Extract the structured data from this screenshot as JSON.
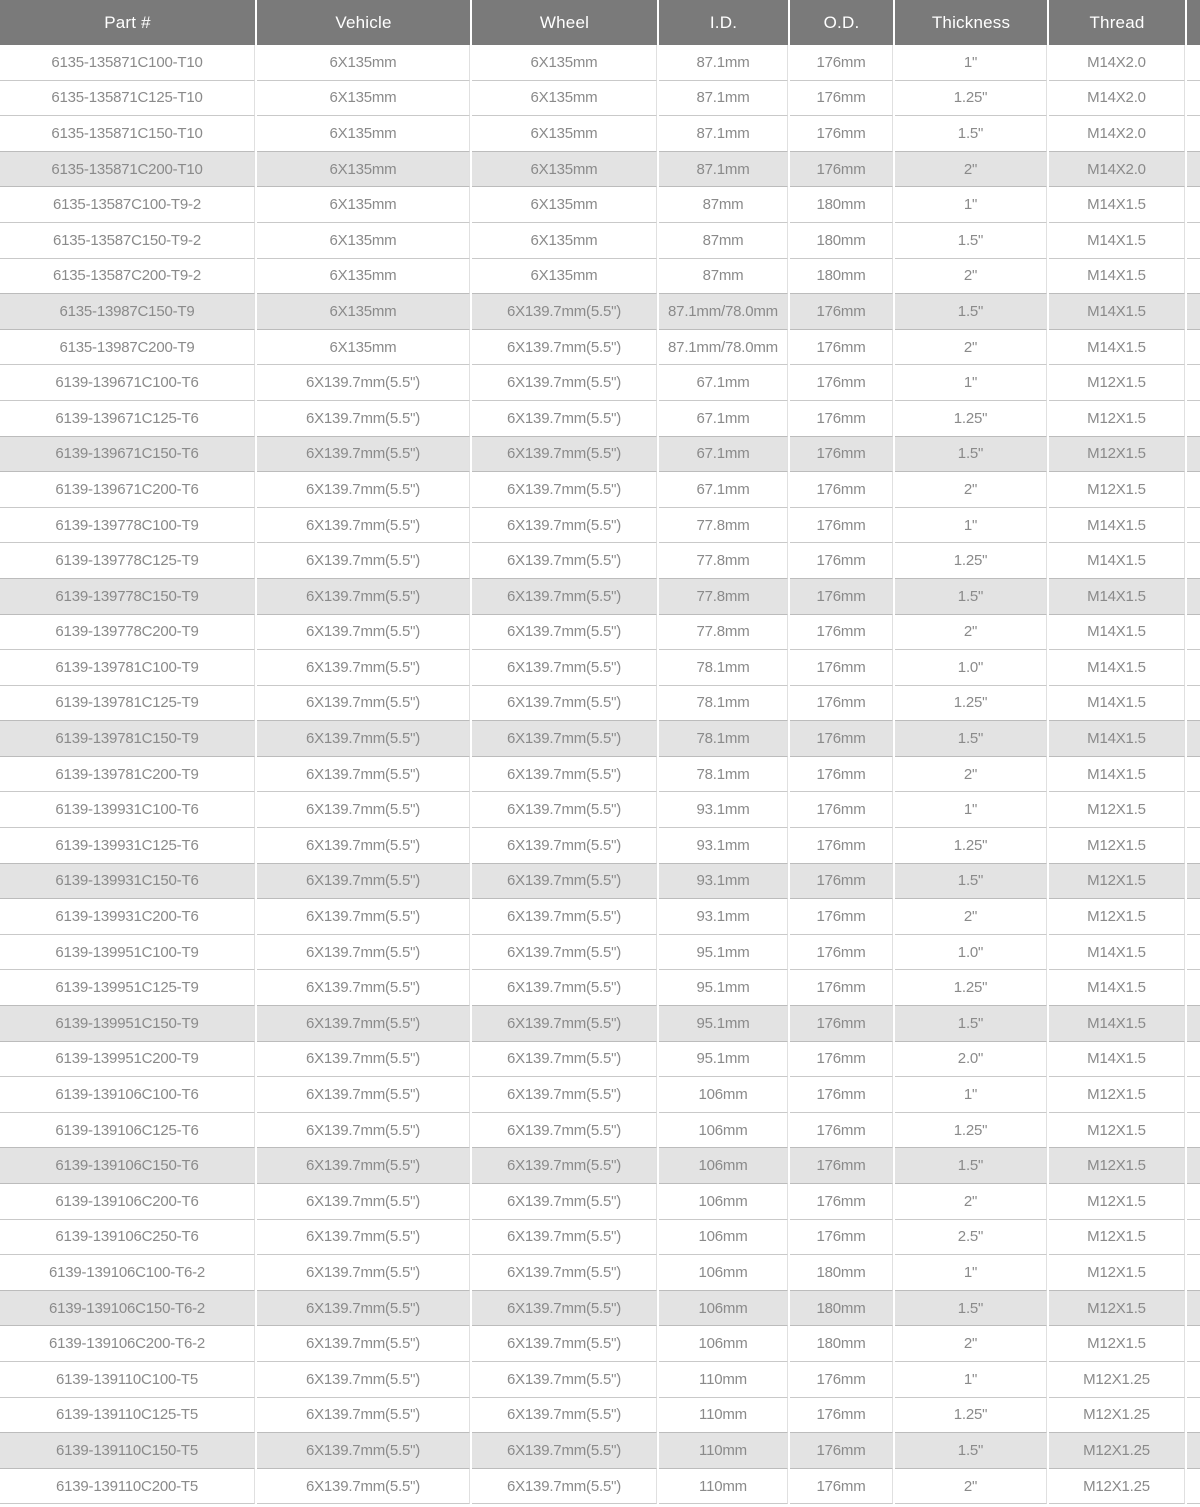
{
  "colors": {
    "header_bg": "#7a7a7a",
    "header_text": "#ffffff",
    "body_text": "#8a8a8a",
    "stripe_bg": "#e3e3e3",
    "row_border": "#c9c9c9",
    "column_border": "#e0e0e0"
  },
  "chart_data": {
    "type": "table",
    "columns": [
      "Part #",
      "Vehicle",
      "Wheel",
      "I.D.",
      "O.D.",
      "Thickness",
      "Thread"
    ],
    "rows": [
      [
        "6135-135871C100-T10",
        "6X135mm",
        "6X135mm",
        "87.1mm",
        "176mm",
        "1\"",
        "M14X2.0"
      ],
      [
        "6135-135871C125-T10",
        "6X135mm",
        "6X135mm",
        "87.1mm",
        "176mm",
        "1.25\"",
        "M14X2.0"
      ],
      [
        "6135-135871C150-T10",
        "6X135mm",
        "6X135mm",
        "87.1mm",
        "176mm",
        "1.5\"",
        "M14X2.0"
      ],
      [
        "6135-135871C200-T10",
        "6X135mm",
        "6X135mm",
        "87.1mm",
        "176mm",
        "2\"",
        "M14X2.0"
      ],
      [
        "6135-13587C100-T9-2",
        "6X135mm",
        "6X135mm",
        "87mm",
        "180mm",
        "1\"",
        "M14X1.5"
      ],
      [
        "6135-13587C150-T9-2",
        "6X135mm",
        "6X135mm",
        "87mm",
        "180mm",
        "1.5\"",
        "M14X1.5"
      ],
      [
        "6135-13587C200-T9-2",
        "6X135mm",
        "6X135mm",
        "87mm",
        "180mm",
        "2\"",
        "M14X1.5"
      ],
      [
        "6135-13987C150-T9",
        "6X135mm",
        "6X139.7mm(5.5\")",
        "87.1mm/78.0mm",
        "176mm",
        "1.5\"",
        "M14X1.5"
      ],
      [
        "6135-13987C200-T9",
        "6X135mm",
        "6X139.7mm(5.5\")",
        "87.1mm/78.0mm",
        "176mm",
        "2\"",
        "M14X1.5"
      ],
      [
        "6139-139671C100-T6",
        "6X139.7mm(5.5\")",
        "6X139.7mm(5.5\")",
        "67.1mm",
        "176mm",
        "1\"",
        "M12X1.5"
      ],
      [
        "6139-139671C125-T6",
        "6X139.7mm(5.5\")",
        "6X139.7mm(5.5\")",
        "67.1mm",
        "176mm",
        "1.25\"",
        "M12X1.5"
      ],
      [
        "6139-139671C150-T6",
        "6X139.7mm(5.5\")",
        "6X139.7mm(5.5\")",
        "67.1mm",
        "176mm",
        "1.5\"",
        "M12X1.5"
      ],
      [
        "6139-139671C200-T6",
        "6X139.7mm(5.5\")",
        "6X139.7mm(5.5\")",
        "67.1mm",
        "176mm",
        "2\"",
        "M12X1.5"
      ],
      [
        "6139-139778C100-T9",
        "6X139.7mm(5.5\")",
        "6X139.7mm(5.5\")",
        "77.8mm",
        "176mm",
        "1\"",
        "M14X1.5"
      ],
      [
        "6139-139778C125-T9",
        "6X139.7mm(5.5\")",
        "6X139.7mm(5.5\")",
        "77.8mm",
        "176mm",
        "1.25\"",
        "M14X1.5"
      ],
      [
        "6139-139778C150-T9",
        "6X139.7mm(5.5\")",
        "6X139.7mm(5.5\")",
        "77.8mm",
        "176mm",
        "1.5\"",
        "M14X1.5"
      ],
      [
        "6139-139778C200-T9",
        "6X139.7mm(5.5\")",
        "6X139.7mm(5.5\")",
        "77.8mm",
        "176mm",
        "2\"",
        "M14X1.5"
      ],
      [
        "6139-139781C100-T9",
        "6X139.7mm(5.5\")",
        "6X139.7mm(5.5\")",
        "78.1mm",
        "176mm",
        "1.0\"",
        "M14X1.5"
      ],
      [
        "6139-139781C125-T9",
        "6X139.7mm(5.5\")",
        "6X139.7mm(5.5\")",
        "78.1mm",
        "176mm",
        "1.25\"",
        "M14X1.5"
      ],
      [
        "6139-139781C150-T9",
        "6X139.7mm(5.5\")",
        "6X139.7mm(5.5\")",
        "78.1mm",
        "176mm",
        "1.5\"",
        "M14X1.5"
      ],
      [
        "6139-139781C200-T9",
        "6X139.7mm(5.5\")",
        "6X139.7mm(5.5\")",
        "78.1mm",
        "176mm",
        "2\"",
        "M14X1.5"
      ],
      [
        "6139-139931C100-T6",
        "6X139.7mm(5.5\")",
        "6X139.7mm(5.5\")",
        "93.1mm",
        "176mm",
        "1\"",
        "M12X1.5"
      ],
      [
        "6139-139931C125-T6",
        "6X139.7mm(5.5\")",
        "6X139.7mm(5.5\")",
        "93.1mm",
        "176mm",
        "1.25\"",
        "M12X1.5"
      ],
      [
        "6139-139931C150-T6",
        "6X139.7mm(5.5\")",
        "6X139.7mm(5.5\")",
        "93.1mm",
        "176mm",
        "1.5\"",
        "M12X1.5"
      ],
      [
        "6139-139931C200-T6",
        "6X139.7mm(5.5\")",
        "6X139.7mm(5.5\")",
        "93.1mm",
        "176mm",
        "2\"",
        "M12X1.5"
      ],
      [
        "6139-139951C100-T9",
        "6X139.7mm(5.5\")",
        "6X139.7mm(5.5\")",
        "95.1mm",
        "176mm",
        "1.0\"",
        "M14X1.5"
      ],
      [
        "6139-139951C125-T9",
        "6X139.7mm(5.5\")",
        "6X139.7mm(5.5\")",
        "95.1mm",
        "176mm",
        "1.25\"",
        "M14X1.5"
      ],
      [
        "6139-139951C150-T9",
        "6X139.7mm(5.5\")",
        "6X139.7mm(5.5\")",
        "95.1mm",
        "176mm",
        "1.5\"",
        "M14X1.5"
      ],
      [
        "6139-139951C200-T9",
        "6X139.7mm(5.5\")",
        "6X139.7mm(5.5\")",
        "95.1mm",
        "176mm",
        "2.0\"",
        "M14X1.5"
      ],
      [
        "6139-139106C100-T6",
        "6X139.7mm(5.5\")",
        "6X139.7mm(5.5\")",
        "106mm",
        "176mm",
        "1\"",
        "M12X1.5"
      ],
      [
        "6139-139106C125-T6",
        "6X139.7mm(5.5\")",
        "6X139.7mm(5.5\")",
        "106mm",
        "176mm",
        "1.25\"",
        "M12X1.5"
      ],
      [
        "6139-139106C150-T6",
        "6X139.7mm(5.5\")",
        "6X139.7mm(5.5\")",
        "106mm",
        "176mm",
        "1.5\"",
        "M12X1.5"
      ],
      [
        "6139-139106C200-T6",
        "6X139.7mm(5.5\")",
        "6X139.7mm(5.5\")",
        "106mm",
        "176mm",
        "2\"",
        "M12X1.5"
      ],
      [
        "6139-139106C250-T6",
        "6X139.7mm(5.5\")",
        "6X139.7mm(5.5\")",
        "106mm",
        "176mm",
        "2.5\"",
        "M12X1.5"
      ],
      [
        "6139-139106C100-T6-2",
        "6X139.7mm(5.5\")",
        "6X139.7mm(5.5\")",
        "106mm",
        "180mm",
        "1\"",
        "M12X1.5"
      ],
      [
        "6139-139106C150-T6-2",
        "6X139.7mm(5.5\")",
        "6X139.7mm(5.5\")",
        "106mm",
        "180mm",
        "1.5\"",
        "M12X1.5"
      ],
      [
        "6139-139106C200-T6-2",
        "6X139.7mm(5.5\")",
        "6X139.7mm(5.5\")",
        "106mm",
        "180mm",
        "2\"",
        "M12X1.5"
      ],
      [
        "6139-139110C100-T5",
        "6X139.7mm(5.5\")",
        "6X139.7mm(5.5\")",
        "110mm",
        "176mm",
        "1\"",
        "M12X1.25"
      ],
      [
        "6139-139110C125-T5",
        "6X139.7mm(5.5\")",
        "6X139.7mm(5.5\")",
        "110mm",
        "176mm",
        "1.25\"",
        "M12X1.25"
      ],
      [
        "6139-139110C150-T5",
        "6X139.7mm(5.5\")",
        "6X139.7mm(5.5\")",
        "110mm",
        "176mm",
        "1.5\"",
        "M12X1.25"
      ],
      [
        "6139-139110C200-T5",
        "6X139.7mm(5.5\")",
        "6X139.7mm(5.5\")",
        "110mm",
        "176mm",
        "2\"",
        "M12X1.25"
      ]
    ]
  }
}
